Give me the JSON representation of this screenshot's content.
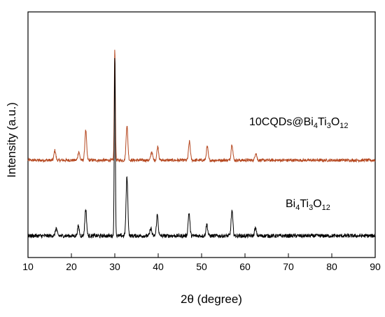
{
  "chart_data": {
    "type": "line",
    "xlabel": "2θ (degree)",
    "ylabel": "Intensity (a.u.)",
    "xlim": [
      10,
      90
    ],
    "x_ticks": [
      "10",
      "20",
      "30",
      "40",
      "50",
      "60",
      "70",
      "80",
      "90"
    ],
    "y_ticks_labeled": false,
    "grid": false,
    "legend": "inline labels next to each curve",
    "series": [
      {
        "name": "10CQDs@Bi4Ti3O12",
        "label_parts": [
          {
            "t": "10CQDs@Bi",
            "sub": false
          },
          {
            "t": "4",
            "sub": true
          },
          {
            "t": "Ti",
            "sub": false
          },
          {
            "t": "3",
            "sub": true
          },
          {
            "t": "O",
            "sub": false
          },
          {
            "t": "12",
            "sub": true
          }
        ],
        "color": "#b5471f",
        "baseline": 0.0,
        "noise": 0.012,
        "peaks": [
          {
            "x": 16.2,
            "h": 0.08
          },
          {
            "x": 21.7,
            "h": 0.07
          },
          {
            "x": 23.3,
            "h": 0.24
          },
          {
            "x": 30.0,
            "h": 0.9
          },
          {
            "x": 32.8,
            "h": 0.28
          },
          {
            "x": 38.5,
            "h": 0.07
          },
          {
            "x": 39.9,
            "h": 0.11
          },
          {
            "x": 47.2,
            "h": 0.15
          },
          {
            "x": 51.3,
            "h": 0.11
          },
          {
            "x": 57.0,
            "h": 0.13
          },
          {
            "x": 62.5,
            "h": 0.06
          }
        ]
      },
      {
        "name": "Bi4Ti3O12",
        "label_parts": [
          {
            "t": "Bi",
            "sub": false
          },
          {
            "t": "4",
            "sub": true
          },
          {
            "t": "Ti",
            "sub": false
          },
          {
            "t": "3",
            "sub": true
          },
          {
            "t": "O",
            "sub": false
          },
          {
            "t": "12",
            "sub": true
          }
        ],
        "color": "#000000",
        "baseline": 0.0,
        "noise": 0.01,
        "peaks": [
          {
            "x": 16.5,
            "h": 0.04
          },
          {
            "x": 21.6,
            "h": 0.05
          },
          {
            "x": 23.3,
            "h": 0.14
          },
          {
            "x": 30.0,
            "h": 0.95
          },
          {
            "x": 32.8,
            "h": 0.31
          },
          {
            "x": 38.3,
            "h": 0.04
          },
          {
            "x": 39.8,
            "h": 0.11
          },
          {
            "x": 47.1,
            "h": 0.12
          },
          {
            "x": 51.2,
            "h": 0.06
          },
          {
            "x": 57.0,
            "h": 0.13
          },
          {
            "x": 62.4,
            "h": 0.04
          }
        ]
      }
    ]
  }
}
